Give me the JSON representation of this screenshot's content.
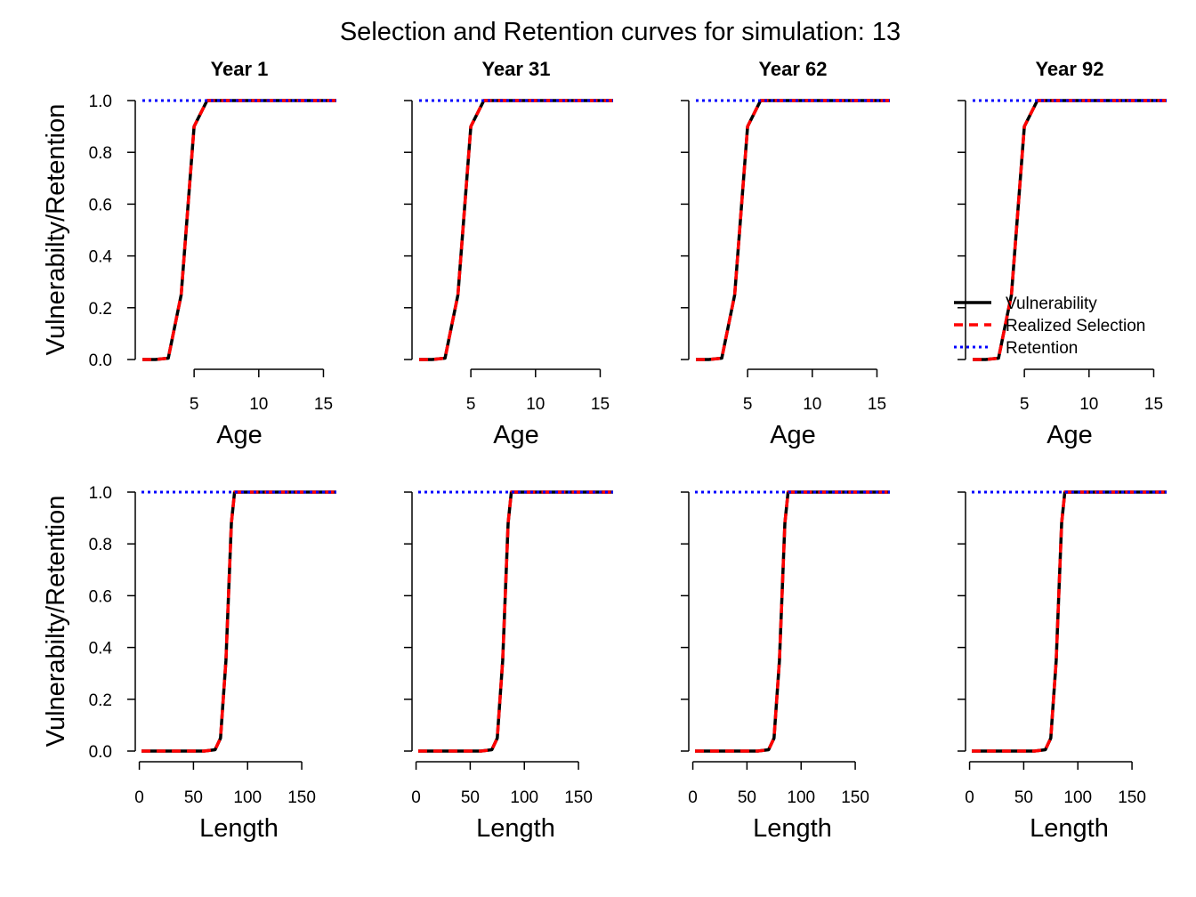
{
  "title": "Selection and Retention curves for simulation: 13",
  "colors": {
    "vulnerability": "#000000",
    "realized_selection": "#ff0000",
    "retention": "#0000ff"
  },
  "legend": {
    "placement": "right, in last age panel",
    "entries": [
      {
        "label": "Vulnerability",
        "color": "#000000",
        "style": "solid"
      },
      {
        "label": "Realized Selection",
        "color": "#ff0000",
        "style": "dashed"
      },
      {
        "label": "Retention",
        "color": "#0000ff",
        "style": "dotted"
      }
    ]
  },
  "chart_data": [
    {
      "type": "line",
      "panel": "Year 1 - Age",
      "title": "Year 1",
      "xlabel": "Age",
      "ylabel": "Vulnerabilty/Retention",
      "xlim": [
        1,
        16
      ],
      "ylim": [
        0,
        1
      ],
      "x_ticks": [
        5,
        10,
        15
      ],
      "y_ticks": [
        "0.0",
        "0.2",
        "0.4",
        "0.6",
        "0.8",
        "1.0"
      ],
      "x": [
        1,
        2,
        3,
        4,
        5,
        6,
        7,
        8,
        9,
        10,
        11,
        12,
        13,
        14,
        15,
        16
      ],
      "series": [
        {
          "name": "Vulnerability",
          "values": [
            0,
            0,
            0.005,
            0.25,
            0.9,
            1,
            1,
            1,
            1,
            1,
            1,
            1,
            1,
            1,
            1,
            1
          ]
        },
        {
          "name": "Realized Selection",
          "values": [
            0,
            0,
            0.005,
            0.25,
            0.9,
            1,
            1,
            1,
            1,
            1,
            1,
            1,
            1,
            1,
            1,
            1
          ]
        },
        {
          "name": "Retention",
          "values": [
            1,
            1,
            1,
            1,
            1,
            1,
            1,
            1,
            1,
            1,
            1,
            1,
            1,
            1,
            1,
            1
          ]
        }
      ]
    },
    {
      "type": "line",
      "panel": "Year 31 - Age",
      "title": "Year 31",
      "xlabel": "Age",
      "ylabel": "",
      "xlim": [
        1,
        16
      ],
      "ylim": [
        0,
        1
      ],
      "x_ticks": [
        5,
        10,
        15
      ],
      "y_ticks": [],
      "x": [
        1,
        2,
        3,
        4,
        5,
        6,
        7,
        8,
        9,
        10,
        11,
        12,
        13,
        14,
        15,
        16
      ],
      "series": [
        {
          "name": "Vulnerability",
          "values": [
            0,
            0,
            0.005,
            0.25,
            0.9,
            1,
            1,
            1,
            1,
            1,
            1,
            1,
            1,
            1,
            1,
            1
          ]
        },
        {
          "name": "Realized Selection",
          "values": [
            0,
            0,
            0.005,
            0.25,
            0.9,
            1,
            1,
            1,
            1,
            1,
            1,
            1,
            1,
            1,
            1,
            1
          ]
        },
        {
          "name": "Retention",
          "values": [
            1,
            1,
            1,
            1,
            1,
            1,
            1,
            1,
            1,
            1,
            1,
            1,
            1,
            1,
            1,
            1
          ]
        }
      ]
    },
    {
      "type": "line",
      "panel": "Year 62 - Age",
      "title": "Year 62",
      "xlabel": "Age",
      "ylabel": "",
      "xlim": [
        1,
        16
      ],
      "ylim": [
        0,
        1
      ],
      "x_ticks": [
        5,
        10,
        15
      ],
      "y_ticks": [],
      "x": [
        1,
        2,
        3,
        4,
        5,
        6,
        7,
        8,
        9,
        10,
        11,
        12,
        13,
        14,
        15,
        16
      ],
      "series": [
        {
          "name": "Vulnerability",
          "values": [
            0,
            0,
            0.005,
            0.25,
            0.9,
            1,
            1,
            1,
            1,
            1,
            1,
            1,
            1,
            1,
            1,
            1
          ]
        },
        {
          "name": "Realized Selection",
          "values": [
            0,
            0,
            0.005,
            0.25,
            0.9,
            1,
            1,
            1,
            1,
            1,
            1,
            1,
            1,
            1,
            1,
            1
          ]
        },
        {
          "name": "Retention",
          "values": [
            1,
            1,
            1,
            1,
            1,
            1,
            1,
            1,
            1,
            1,
            1,
            1,
            1,
            1,
            1,
            1
          ]
        }
      ]
    },
    {
      "type": "line",
      "panel": "Year 92 - Age",
      "title": "Year 92",
      "xlabel": "Age",
      "ylabel": "",
      "xlim": [
        1,
        16
      ],
      "ylim": [
        0,
        1
      ],
      "x_ticks": [
        5,
        10,
        15
      ],
      "y_ticks": [],
      "x": [
        1,
        2,
        3,
        4,
        5,
        6,
        7,
        8,
        9,
        10,
        11,
        12,
        13,
        14,
        15,
        16
      ],
      "series": [
        {
          "name": "Vulnerability",
          "values": [
            0,
            0,
            0.005,
            0.25,
            0.9,
            1,
            1,
            1,
            1,
            1,
            1,
            1,
            1,
            1,
            1,
            1
          ]
        },
        {
          "name": "Realized Selection",
          "values": [
            0,
            0,
            0.005,
            0.25,
            0.9,
            1,
            1,
            1,
            1,
            1,
            1,
            1,
            1,
            1,
            1,
            1
          ]
        },
        {
          "name": "Retention",
          "values": [
            1,
            1,
            1,
            1,
            1,
            1,
            1,
            1,
            1,
            1,
            1,
            1,
            1,
            1,
            1,
            1
          ]
        }
      ]
    },
    {
      "type": "line",
      "panel": "Year 1 - Length",
      "title": "",
      "xlabel": "Length",
      "ylabel": "Vulnerabilty/Retention",
      "xlim": [
        2,
        182
      ],
      "ylim": [
        0,
        1
      ],
      "x_ticks": [
        0,
        50,
        100,
        150
      ],
      "y_ticks": [
        "0.0",
        "0.2",
        "0.4",
        "0.6",
        "0.8",
        "1.0"
      ],
      "x": [
        2,
        10,
        20,
        30,
        40,
        50,
        60,
        70,
        75,
        80,
        85,
        88,
        92,
        100,
        120,
        140,
        160,
        182
      ],
      "series": [
        {
          "name": "Vulnerability",
          "values": [
            0,
            0,
            0,
            0,
            0,
            0,
            0,
            0.005,
            0.05,
            0.35,
            0.88,
            1,
            1,
            1,
            1,
            1,
            1,
            1
          ]
        },
        {
          "name": "Realized Selection",
          "values": [
            0,
            0,
            0,
            0,
            0,
            0,
            0,
            0.005,
            0.05,
            0.35,
            0.88,
            1,
            1,
            1,
            1,
            1,
            1,
            1
          ]
        },
        {
          "name": "Retention",
          "values": [
            1,
            1,
            1,
            1,
            1,
            1,
            1,
            1,
            1,
            1,
            1,
            1,
            1,
            1,
            1,
            1,
            1,
            1
          ]
        }
      ]
    },
    {
      "type": "line",
      "panel": "Year 31 - Length",
      "title": "",
      "xlabel": "Length",
      "ylabel": "",
      "xlim": [
        2,
        182
      ],
      "ylim": [
        0,
        1
      ],
      "x_ticks": [
        0,
        50,
        100,
        150
      ],
      "y_ticks": [],
      "x": [
        2,
        10,
        20,
        30,
        40,
        50,
        60,
        70,
        75,
        80,
        85,
        88,
        92,
        100,
        120,
        140,
        160,
        182
      ],
      "series": [
        {
          "name": "Vulnerability",
          "values": [
            0,
            0,
            0,
            0,
            0,
            0,
            0,
            0.005,
            0.05,
            0.35,
            0.88,
            1,
            1,
            1,
            1,
            1,
            1,
            1
          ]
        },
        {
          "name": "Realized Selection",
          "values": [
            0,
            0,
            0,
            0,
            0,
            0,
            0,
            0.005,
            0.05,
            0.35,
            0.88,
            1,
            1,
            1,
            1,
            1,
            1,
            1
          ]
        },
        {
          "name": "Retention",
          "values": [
            1,
            1,
            1,
            1,
            1,
            1,
            1,
            1,
            1,
            1,
            1,
            1,
            1,
            1,
            1,
            1,
            1,
            1
          ]
        }
      ]
    },
    {
      "type": "line",
      "panel": "Year 62 - Length",
      "title": "",
      "xlabel": "Length",
      "ylabel": "",
      "xlim": [
        2,
        182
      ],
      "ylim": [
        0,
        1
      ],
      "x_ticks": [
        0,
        50,
        100,
        150
      ],
      "y_ticks": [],
      "x": [
        2,
        10,
        20,
        30,
        40,
        50,
        60,
        70,
        75,
        80,
        85,
        88,
        92,
        100,
        120,
        140,
        160,
        182
      ],
      "series": [
        {
          "name": "Vulnerability",
          "values": [
            0,
            0,
            0,
            0,
            0,
            0,
            0,
            0.005,
            0.05,
            0.35,
            0.88,
            1,
            1,
            1,
            1,
            1,
            1,
            1
          ]
        },
        {
          "name": "Realized Selection",
          "values": [
            0,
            0,
            0,
            0,
            0,
            0,
            0,
            0.005,
            0.05,
            0.35,
            0.88,
            1,
            1,
            1,
            1,
            1,
            1,
            1
          ]
        },
        {
          "name": "Retention",
          "values": [
            1,
            1,
            1,
            1,
            1,
            1,
            1,
            1,
            1,
            1,
            1,
            1,
            1,
            1,
            1,
            1,
            1,
            1
          ]
        }
      ]
    },
    {
      "type": "line",
      "panel": "Year 92 - Length",
      "title": "",
      "xlabel": "Length",
      "ylabel": "",
      "xlim": [
        2,
        182
      ],
      "ylim": [
        0,
        1
      ],
      "x_ticks": [
        0,
        50,
        100,
        150
      ],
      "y_ticks": [],
      "x": [
        2,
        10,
        20,
        30,
        40,
        50,
        60,
        70,
        75,
        80,
        85,
        88,
        92,
        100,
        120,
        140,
        160,
        182
      ],
      "series": [
        {
          "name": "Vulnerability",
          "values": [
            0,
            0,
            0,
            0,
            0,
            0,
            0,
            0.005,
            0.05,
            0.35,
            0.88,
            1,
            1,
            1,
            1,
            1,
            1,
            1
          ]
        },
        {
          "name": "Realized Selection",
          "values": [
            0,
            0,
            0,
            0,
            0,
            0,
            0,
            0.005,
            0.05,
            0.35,
            0.88,
            1,
            1,
            1,
            1,
            1,
            1,
            1
          ]
        },
        {
          "name": "Retention",
          "values": [
            1,
            1,
            1,
            1,
            1,
            1,
            1,
            1,
            1,
            1,
            1,
            1,
            1,
            1,
            1,
            1,
            1,
            1
          ]
        }
      ]
    }
  ]
}
